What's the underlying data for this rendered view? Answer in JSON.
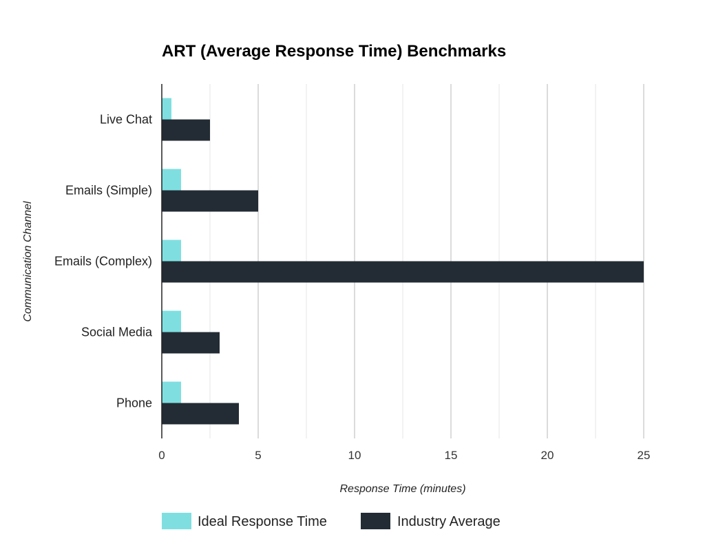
{
  "chart_data": {
    "type": "bar",
    "orientation": "horizontal",
    "title": "ART (Average Response Time) Benchmarks",
    "xlabel": "Response Time (minutes)",
    "ylabel": "Communication Channel",
    "categories": [
      "Live Chat",
      "Emails (Simple)",
      "Emails (Complex)",
      "Social Media",
      "Phone"
    ],
    "series": [
      {
        "name": "Ideal Response Time",
        "color": "#7fdfe0",
        "values": [
          0.5,
          1,
          1,
          1,
          1
        ]
      },
      {
        "name": "Industry Average",
        "color": "#232c34",
        "values": [
          2.5,
          5,
          25,
          3,
          4
        ]
      }
    ],
    "xlim": [
      0,
      25
    ],
    "xticks": [
      0,
      5,
      10,
      15,
      20,
      25
    ],
    "grid": true,
    "legend_position": "bottom"
  }
}
